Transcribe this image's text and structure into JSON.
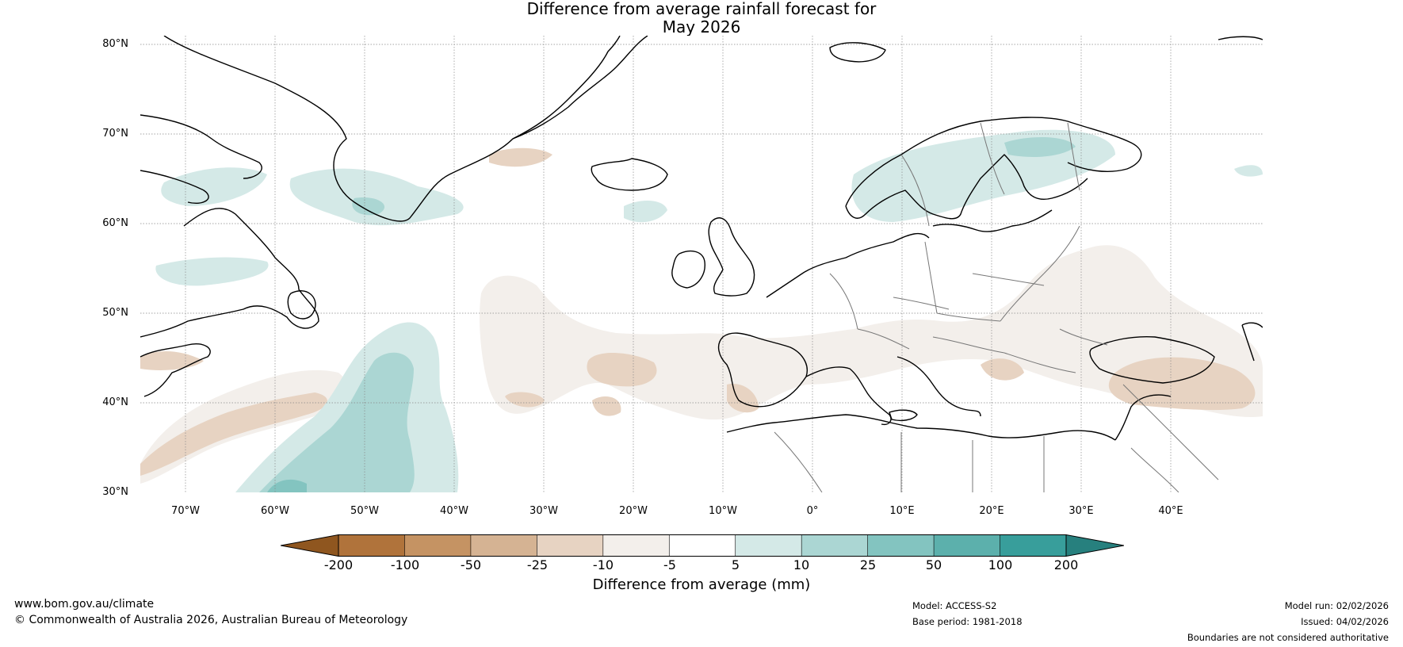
{
  "title": {
    "line1": "Difference from average rainfall forecast for",
    "line2": "May 2026"
  },
  "map": {
    "latitude_labels": [
      "80°N",
      "70°N",
      "60°N",
      "50°N",
      "40°N",
      "30°N"
    ],
    "longitude_labels": [
      "70°W",
      "60°W",
      "50°W",
      "40°W",
      "30°W",
      "20°W",
      "10°W",
      "0°",
      "10°E",
      "20°E",
      "30°E",
      "40°E"
    ],
    "region": "North Atlantic and Europe"
  },
  "legend": {
    "label": "Difference from average (mm)",
    "ticks": [
      "-200",
      "-100",
      "-50",
      "-25",
      "-10",
      "-5",
      "5",
      "10",
      "25",
      "50",
      "100",
      "200"
    ],
    "colors": {
      "below_200": "#8f561f",
      "m200_m100": "#b0733b",
      "m100_m50": "#c59363",
      "m50_m25": "#d5b393",
      "m25_m10": "#e7d3c2",
      "m10_m5": "#f3efeb",
      "m5_5": "#ffffff",
      "p5_p10": "#d4e9e7",
      "p10_p25": "#abd6d3",
      "p25_p50": "#83c4c0",
      "p50_p100": "#5cb0ac",
      "p100_p200": "#389e9b",
      "above_200": "#27807e"
    }
  },
  "footer": {
    "website": "www.bom.gov.au/climate",
    "copyright": "© Commonwealth of Australia 2026, Australian Bureau of Meteorology",
    "model": "Model: ACCESS-S2",
    "base_period": "Base period: 1981-2018",
    "model_run": "Model run: 02/02/2026",
    "issued": "Issued: 04/02/2026",
    "disclaimer": "Boundaries are not considered authoritative"
  }
}
